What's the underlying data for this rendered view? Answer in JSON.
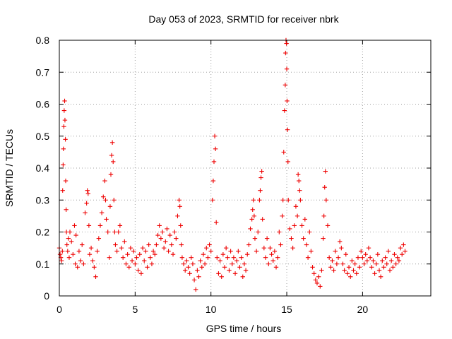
{
  "chart_data": {
    "type": "scatter",
    "title": "Day 053 of 2023, SRMTID for receiver nbrk",
    "xlabel": "GPS time / hours",
    "ylabel": "SRMTID / TECUs",
    "xlim": [
      0,
      24.5
    ],
    "ylim": [
      0,
      0.8
    ],
    "xticks": [
      0,
      5,
      10,
      15,
      20
    ],
    "xtick_labels": [
      "0",
      "5",
      "10",
      "15",
      "20"
    ],
    "yticks": [
      0,
      0.1,
      0.2,
      0.3,
      0.4,
      0.5,
      0.6,
      0.7,
      0.8
    ],
    "ytick_labels": [
      "0",
      "0.1",
      "0.2",
      "0.3",
      "0.4",
      "0.5",
      "0.6",
      "0.7",
      "0.8"
    ],
    "grid": true,
    "marker": "+",
    "color": "#ee0000",
    "series": [
      {
        "name": "SRMTID",
        "points": [
          [
            0.0,
            0.15
          ],
          [
            0.05,
            0.13
          ],
          [
            0.1,
            0.12
          ],
          [
            0.15,
            0.11
          ],
          [
            0.2,
            0.14
          ],
          [
            0.22,
            0.33
          ],
          [
            0.25,
            0.41
          ],
          [
            0.27,
            0.46
          ],
          [
            0.3,
            0.53
          ],
          [
            0.32,
            0.58
          ],
          [
            0.35,
            0.61
          ],
          [
            0.37,
            0.55
          ],
          [
            0.4,
            0.49
          ],
          [
            0.42,
            0.36
          ],
          [
            0.45,
            0.27
          ],
          [
            0.47,
            0.2
          ],
          [
            0.5,
            0.16
          ],
          [
            0.55,
            0.14
          ],
          [
            0.6,
            0.18
          ],
          [
            0.65,
            0.12
          ],
          [
            0.7,
            0.2
          ],
          [
            0.8,
            0.17
          ],
          [
            0.9,
            0.13
          ],
          [
            1.0,
            0.22
          ],
          [
            1.05,
            0.1
          ],
          [
            1.1,
            0.19
          ],
          [
            1.2,
            0.09
          ],
          [
            1.3,
            0.14
          ],
          [
            1.4,
            0.11
          ],
          [
            1.5,
            0.16
          ],
          [
            1.6,
            0.1
          ],
          [
            1.7,
            0.26
          ],
          [
            1.8,
            0.29
          ],
          [
            1.85,
            0.33
          ],
          [
            1.9,
            0.32
          ],
          [
            1.95,
            0.22
          ],
          [
            2.0,
            0.13
          ],
          [
            2.1,
            0.15
          ],
          [
            2.2,
            0.11
          ],
          [
            2.3,
            0.09
          ],
          [
            2.4,
            0.06
          ],
          [
            2.5,
            0.14
          ],
          [
            2.6,
            0.18
          ],
          [
            2.7,
            0.22
          ],
          [
            2.8,
            0.26
          ],
          [
            2.9,
            0.31
          ],
          [
            3.0,
            0.36
          ],
          [
            3.05,
            0.3
          ],
          [
            3.1,
            0.24
          ],
          [
            3.2,
            0.2
          ],
          [
            3.3,
            0.12
          ],
          [
            3.35,
            0.28
          ],
          [
            3.4,
            0.38
          ],
          [
            3.45,
            0.44
          ],
          [
            3.5,
            0.48
          ],
          [
            3.55,
            0.42
          ],
          [
            3.6,
            0.3
          ],
          [
            3.65,
            0.2
          ],
          [
            3.7,
            0.16
          ],
          [
            3.8,
            0.14
          ],
          [
            3.9,
            0.2
          ],
          [
            4.0,
            0.22
          ],
          [
            4.1,
            0.15
          ],
          [
            4.2,
            0.12
          ],
          [
            4.3,
            0.17
          ],
          [
            4.4,
            0.1
          ],
          [
            4.5,
            0.13
          ],
          [
            4.6,
            0.09
          ],
          [
            4.7,
            0.15
          ],
          [
            4.8,
            0.11
          ],
          [
            4.9,
            0.14
          ],
          [
            5.0,
            0.1
          ],
          [
            5.1,
            0.12
          ],
          [
            5.2,
            0.08
          ],
          [
            5.3,
            0.13
          ],
          [
            5.4,
            0.07
          ],
          [
            5.5,
            0.15
          ],
          [
            5.6,
            0.11
          ],
          [
            5.7,
            0.14
          ],
          [
            5.8,
            0.09
          ],
          [
            5.9,
            0.16
          ],
          [
            6.0,
            0.12
          ],
          [
            6.1,
            0.1
          ],
          [
            6.2,
            0.14
          ],
          [
            6.3,
            0.13
          ],
          [
            6.4,
            0.16
          ],
          [
            6.5,
            0.19
          ],
          [
            6.6,
            0.22
          ],
          [
            6.7,
            0.18
          ],
          [
            6.8,
            0.2
          ],
          [
            6.9,
            0.15
          ],
          [
            7.0,
            0.17
          ],
          [
            7.1,
            0.21
          ],
          [
            7.2,
            0.14
          ],
          [
            7.3,
            0.19
          ],
          [
            7.4,
            0.16
          ],
          [
            7.5,
            0.13
          ],
          [
            7.6,
            0.2
          ],
          [
            7.7,
            0.18
          ],
          [
            7.8,
            0.25
          ],
          [
            7.9,
            0.3
          ],
          [
            7.95,
            0.28
          ],
          [
            8.0,
            0.22
          ],
          [
            8.05,
            0.16
          ],
          [
            8.1,
            0.12
          ],
          [
            8.2,
            0.1
          ],
          [
            8.3,
            0.08
          ],
          [
            8.4,
            0.11
          ],
          [
            8.5,
            0.09
          ],
          [
            8.6,
            0.07
          ],
          [
            8.7,
            0.12
          ],
          [
            8.8,
            0.1
          ],
          [
            8.9,
            0.05
          ],
          [
            9.0,
            0.02
          ],
          [
            9.1,
            0.08
          ],
          [
            9.2,
            0.06
          ],
          [
            9.3,
            0.11
          ],
          [
            9.4,
            0.09
          ],
          [
            9.5,
            0.13
          ],
          [
            9.6,
            0.1
          ],
          [
            9.7,
            0.15
          ],
          [
            9.8,
            0.12
          ],
          [
            9.9,
            0.16
          ],
          [
            10.0,
            0.14
          ],
          [
            10.1,
            0.3
          ],
          [
            10.15,
            0.36
          ],
          [
            10.2,
            0.42
          ],
          [
            10.25,
            0.5
          ],
          [
            10.3,
            0.46
          ],
          [
            10.35,
            0.23
          ],
          [
            10.4,
            0.12
          ],
          [
            10.5,
            0.07
          ],
          [
            10.6,
            0.11
          ],
          [
            10.7,
            0.06
          ],
          [
            10.8,
            0.13
          ],
          [
            10.9,
            0.09
          ],
          [
            11.0,
            0.15
          ],
          [
            11.1,
            0.12
          ],
          [
            11.2,
            0.08
          ],
          [
            11.3,
            0.14
          ],
          [
            11.4,
            0.1
          ],
          [
            11.5,
            0.12
          ],
          [
            11.6,
            0.07
          ],
          [
            11.7,
            0.11
          ],
          [
            11.8,
            0.14
          ],
          [
            11.9,
            0.09
          ],
          [
            12.0,
            0.12
          ],
          [
            12.1,
            0.06
          ],
          [
            12.2,
            0.1
          ],
          [
            12.3,
            0.08
          ],
          [
            12.4,
            0.13
          ],
          [
            12.5,
            0.16
          ],
          [
            12.6,
            0.21
          ],
          [
            12.7,
            0.24
          ],
          [
            12.75,
            0.27
          ],
          [
            12.8,
            0.3
          ],
          [
            12.85,
            0.25
          ],
          [
            12.9,
            0.18
          ],
          [
            13.0,
            0.14
          ],
          [
            13.1,
            0.2
          ],
          [
            13.2,
            0.3
          ],
          [
            13.25,
            0.33
          ],
          [
            13.3,
            0.37
          ],
          [
            13.35,
            0.39
          ],
          [
            13.4,
            0.24
          ],
          [
            13.5,
            0.15
          ],
          [
            13.6,
            0.12
          ],
          [
            13.7,
            0.18
          ],
          [
            13.8,
            0.1
          ],
          [
            13.9,
            0.15
          ],
          [
            14.0,
            0.13
          ],
          [
            14.1,
            0.11
          ],
          [
            14.2,
            0.14
          ],
          [
            14.3,
            0.09
          ],
          [
            14.4,
            0.12
          ],
          [
            14.5,
            0.2
          ],
          [
            14.6,
            0.16
          ],
          [
            14.7,
            0.25
          ],
          [
            14.75,
            0.3
          ],
          [
            14.8,
            0.45
          ],
          [
            14.85,
            0.58
          ],
          [
            14.9,
            0.66
          ],
          [
            14.92,
            0.76
          ],
          [
            14.95,
            0.8
          ],
          [
            14.98,
            0.79
          ],
          [
            15.0,
            0.71
          ],
          [
            15.02,
            0.61
          ],
          [
            15.05,
            0.52
          ],
          [
            15.08,
            0.42
          ],
          [
            15.1,
            0.3
          ],
          [
            15.2,
            0.21
          ],
          [
            15.3,
            0.18
          ],
          [
            15.4,
            0.15
          ],
          [
            15.5,
            0.22
          ],
          [
            15.6,
            0.28
          ],
          [
            15.7,
            0.25
          ],
          [
            15.75,
            0.38
          ],
          [
            15.8,
            0.36
          ],
          [
            15.85,
            0.33
          ],
          [
            15.9,
            0.3
          ],
          [
            16.0,
            0.22
          ],
          [
            16.1,
            0.18
          ],
          [
            16.2,
            0.24
          ],
          [
            16.3,
            0.16
          ],
          [
            16.4,
            0.12
          ],
          [
            16.5,
            0.2
          ],
          [
            16.6,
            0.14
          ],
          [
            16.7,
            0.09
          ],
          [
            16.8,
            0.07
          ],
          [
            16.9,
            0.05
          ],
          [
            17.0,
            0.04
          ],
          [
            17.1,
            0.06
          ],
          [
            17.2,
            0.03
          ],
          [
            17.3,
            0.08
          ],
          [
            17.4,
            0.18
          ],
          [
            17.45,
            0.25
          ],
          [
            17.5,
            0.34
          ],
          [
            17.55,
            0.39
          ],
          [
            17.6,
            0.3
          ],
          [
            17.7,
            0.22
          ],
          [
            17.8,
            0.12
          ],
          [
            17.9,
            0.09
          ],
          [
            18.0,
            0.11
          ],
          [
            18.1,
            0.08
          ],
          [
            18.2,
            0.14
          ],
          [
            18.3,
            0.1
          ],
          [
            18.4,
            0.12
          ],
          [
            18.5,
            0.17
          ],
          [
            18.6,
            0.15
          ],
          [
            18.7,
            0.1
          ],
          [
            18.8,
            0.08
          ],
          [
            18.9,
            0.13
          ],
          [
            19.0,
            0.07
          ],
          [
            19.1,
            0.09
          ],
          [
            19.2,
            0.06
          ],
          [
            19.3,
            0.11
          ],
          [
            19.4,
            0.08
          ],
          [
            19.5,
            0.1
          ],
          [
            19.6,
            0.07
          ],
          [
            19.7,
            0.12
          ],
          [
            19.8,
            0.09
          ],
          [
            19.9,
            0.14
          ],
          [
            20.0,
            0.12
          ],
          [
            20.1,
            0.1
          ],
          [
            20.2,
            0.13
          ],
          [
            20.3,
            0.11
          ],
          [
            20.4,
            0.15
          ],
          [
            20.5,
            0.12
          ],
          [
            20.6,
            0.09
          ],
          [
            20.7,
            0.11
          ],
          [
            20.8,
            0.07
          ],
          [
            20.9,
            0.1
          ],
          [
            21.0,
            0.13
          ],
          [
            21.1,
            0.08
          ],
          [
            21.2,
            0.06
          ],
          [
            21.3,
            0.11
          ],
          [
            21.4,
            0.09
          ],
          [
            21.5,
            0.12
          ],
          [
            21.6,
            0.1
          ],
          [
            21.7,
            0.14
          ],
          [
            21.8,
            0.08
          ],
          [
            21.9,
            0.11
          ],
          [
            22.0,
            0.09
          ],
          [
            22.1,
            0.13
          ],
          [
            22.2,
            0.1
          ],
          [
            22.3,
            0.12
          ],
          [
            22.4,
            0.11
          ],
          [
            22.5,
            0.15
          ],
          [
            22.6,
            0.13
          ],
          [
            22.7,
            0.16
          ],
          [
            22.8,
            0.14
          ]
        ]
      }
    ]
  }
}
